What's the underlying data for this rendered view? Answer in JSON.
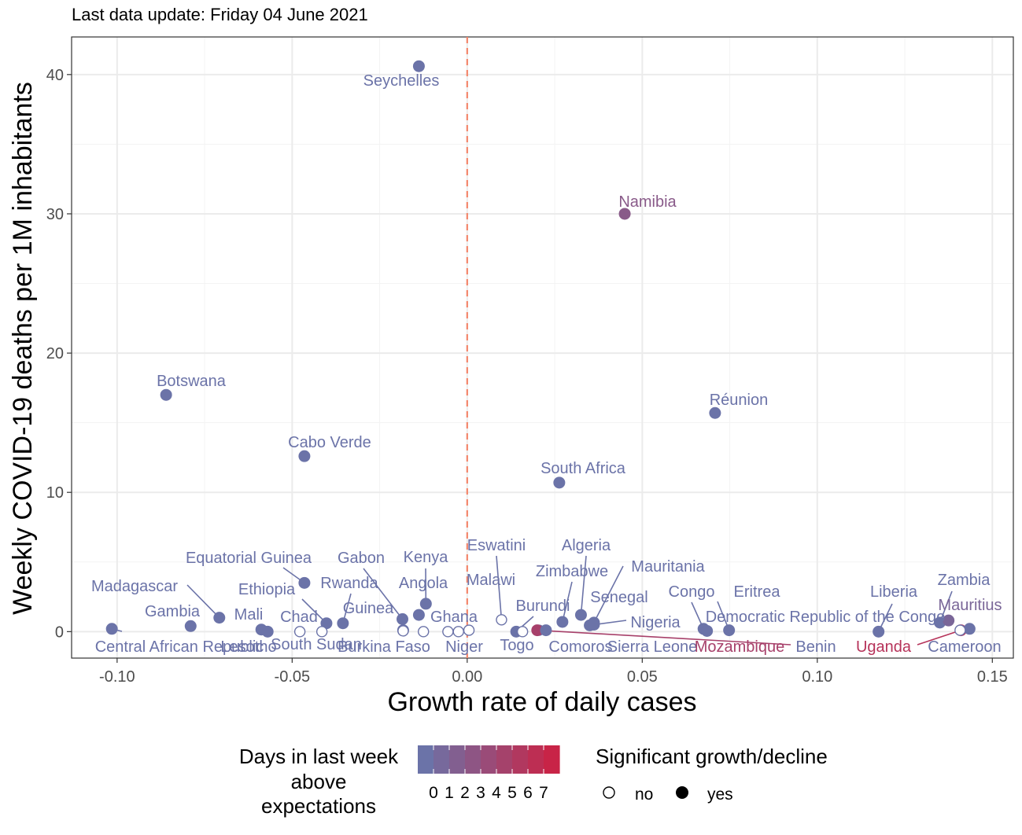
{
  "subtitle": "Last data update: Friday 04 June 2021",
  "chart_data": {
    "type": "scatter",
    "title": "",
    "xlabel": "Growth rate of daily cases",
    "ylabel": "Weekly COVID-19 deaths per 1M inhabitants",
    "xlim": [
      -0.113,
      0.156
    ],
    "ylim": [
      -1.9,
      42.7
    ],
    "x_ticks": [
      -0.1,
      -0.05,
      0.0,
      0.05,
      0.1,
      0.15
    ],
    "x_tick_labels": [
      "-0.10",
      "-0.05",
      "0.00",
      "0.05",
      "0.10",
      "0.15"
    ],
    "y_ticks": [
      0,
      10,
      20,
      30,
      40
    ],
    "y_tick_labels": [
      "0",
      "10",
      "20",
      "30",
      "40"
    ],
    "grid": true,
    "reference_line": {
      "x": 0,
      "color": "#f4876c",
      "style": "dashed"
    },
    "color_scale": {
      "low": "#6b73a8",
      "high": "#d41a3b",
      "min": 0,
      "max": 7
    },
    "points": [
      {
        "name": "Seychelles",
        "x": -0.0138,
        "y": 40.6,
        "days": 0,
        "sig": true
      },
      {
        "name": "Namibia",
        "x": 0.045,
        "y": 30.0,
        "days": 2,
        "sig": true
      },
      {
        "name": "Botswana",
        "x": -0.086,
        "y": 17.0,
        "days": 0,
        "sig": true
      },
      {
        "name": "Réunion",
        "x": 0.0708,
        "y": 15.7,
        "days": 0,
        "sig": true
      },
      {
        "name": "Cabo Verde",
        "x": -0.0465,
        "y": 12.6,
        "days": 0,
        "sig": true
      },
      {
        "name": "South Africa",
        "x": 0.0263,
        "y": 10.7,
        "days": 0,
        "sig": true
      },
      {
        "name": "Equatorial Guinea",
        "x": -0.0465,
        "y": 3.5,
        "days": 0,
        "sig": true
      },
      {
        "name": "Gabon",
        "x": -0.0185,
        "y": 0.9,
        "days": 0,
        "sig": true
      },
      {
        "name": "Kenya",
        "x": -0.0118,
        "y": 2.0,
        "days": 0,
        "sig": true
      },
      {
        "name": "Angola",
        "x": -0.0138,
        "y": 1.2,
        "days": 0,
        "sig": true
      },
      {
        "name": "Madagascar",
        "x": -0.0708,
        "y": 1.0,
        "days": 0,
        "sig": true
      },
      {
        "name": "Ethiopia",
        "x": -0.0402,
        "y": 0.6,
        "days": 0,
        "sig": true
      },
      {
        "name": "Rwanda",
        "x": -0.0355,
        "y": 0.6,
        "days": 0,
        "sig": true
      },
      {
        "name": "Gambia",
        "x": -0.079,
        "y": 0.4,
        "days": 0,
        "sig": true
      },
      {
        "name": "Mali",
        "x": -0.0588,
        "y": 0.15,
        "days": 0,
        "sig": true
      },
      {
        "name": "Central African Republic",
        "x": -0.1015,
        "y": 0.2,
        "days": 0,
        "sig": true
      },
      {
        "name": "Lesotho",
        "x": -0.057,
        "y": 0.0,
        "days": 0,
        "sig": true
      },
      {
        "name": "Chad",
        "x": -0.0478,
        "y": 0.0,
        "days": 0,
        "sig": false
      },
      {
        "name": "South Sudan",
        "x": -0.0415,
        "y": 0.0,
        "days": 0,
        "sig": false
      },
      {
        "name": "Guinea",
        "x": -0.0183,
        "y": 0.1,
        "days": 0,
        "sig": true
      },
      {
        "name": "Burkina Faso",
        "x": -0.0183,
        "y": 0.05,
        "days": 0,
        "sig": false
      },
      {
        "name": "Niger",
        "x": -0.0125,
        "y": 0.0,
        "days": 0,
        "sig": false
      },
      {
        "name": "Ghana",
        "x": -0.0055,
        "y": 0.0,
        "days": 0,
        "sig": false
      },
      {
        "name": "Togo",
        "x": -0.0025,
        "y": 0.0,
        "days": 0,
        "sig": false
      },
      {
        "name": "Eswatini",
        "x": 0.0098,
        "y": 0.85,
        "days": 0,
        "sig": false
      },
      {
        "name": "Malawi",
        "x": 0.0005,
        "y": 0.1,
        "days": 0,
        "sig": false
      },
      {
        "name": "Burundi",
        "x": 0.014,
        "y": 0.0,
        "days": 0,
        "sig": true
      },
      {
        "name": "Comoros",
        "x": 0.0158,
        "y": 0.0,
        "days": 0,
        "sig": false
      },
      {
        "name": "Sierra Leone",
        "x": 0.0205,
        "y": 0.1,
        "days": 0,
        "sig": false
      },
      {
        "name": "Mozambique",
        "x": 0.02,
        "y": 0.1,
        "days": 4,
        "sig": true
      },
      {
        "name": "Benin",
        "x": 0.0225,
        "y": 0.1,
        "days": 0,
        "sig": true
      },
      {
        "name": "Algeria",
        "x": 0.0325,
        "y": 1.2,
        "days": 0,
        "sig": true
      },
      {
        "name": "Zimbabwe",
        "x": 0.0272,
        "y": 0.7,
        "days": 0,
        "sig": true
      },
      {
        "name": "Mauritania",
        "x": 0.0362,
        "y": 0.65,
        "days": 0,
        "sig": true
      },
      {
        "name": "Senegal",
        "x": 0.035,
        "y": 0.45,
        "days": 0,
        "sig": true
      },
      {
        "name": "Nigeria",
        "x": 0.0362,
        "y": 0.5,
        "days": 0,
        "sig": true
      },
      {
        "name": "Congo",
        "x": 0.0675,
        "y": 0.2,
        "days": 0,
        "sig": true
      },
      {
        "name": "Democratic Republic of the Congo",
        "x": 0.0685,
        "y": 0.05,
        "days": 0,
        "sig": true
      },
      {
        "name": "Eritrea",
        "x": 0.0748,
        "y": 0.1,
        "days": 0,
        "sig": true
      },
      {
        "name": "Liberia",
        "x": 0.1175,
        "y": 0.0,
        "days": 0,
        "sig": true
      },
      {
        "name": "Zambia",
        "x": 0.135,
        "y": 0.65,
        "days": 0,
        "sig": true
      },
      {
        "name": "Mauritius",
        "x": 0.1375,
        "y": 0.8,
        "days": 1,
        "sig": true
      },
      {
        "name": "Uganda",
        "x": 0.141,
        "y": 0.1,
        "days": 5,
        "sig": true
      },
      {
        "name": "Cameroon",
        "x": 0.1435,
        "y": 0.2,
        "days": 0,
        "sig": true
      },
      {
        "name": "",
        "x": 0.1408,
        "y": 0.1,
        "days": 0,
        "sig": false
      }
    ],
    "legend": {
      "placement": "bottom",
      "color_title": [
        "Days in last week",
        "above",
        "expectations"
      ],
      "color_labels": [
        "0",
        "1",
        "2",
        "3",
        "4",
        "5",
        "6",
        "7"
      ],
      "shape_title": "Significant growth/decline",
      "shape_labels": [
        "no",
        "yes"
      ]
    }
  }
}
